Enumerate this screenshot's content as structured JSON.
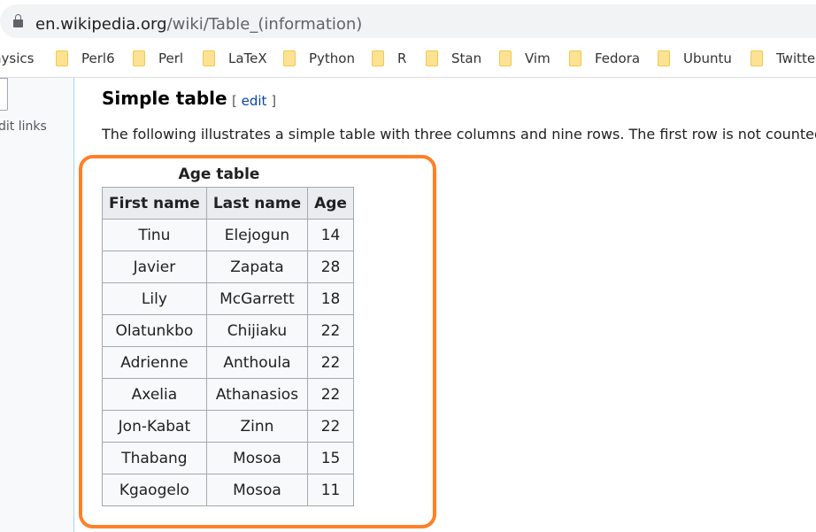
{
  "browser": {
    "url_host": "en.wikipedia.org",
    "url_path": "/wiki/Table_(information)",
    "bookmarks": [
      "hysics",
      "Perl6",
      "Perl",
      "LaTeX",
      "Python",
      "R",
      "Stan",
      "Vim",
      "Fedora",
      "Ubuntu",
      "Twitter"
    ]
  },
  "sidebar": {
    "link": "dit links"
  },
  "section": {
    "title": "Simple table",
    "edit_open": "[ ",
    "edit_label": "edit",
    "edit_close": " ]",
    "paragraph": "The following illustrates a simple table with three columns and nine rows. The first row is not counted"
  },
  "table": {
    "caption": "Age table",
    "headers": [
      "First name",
      "Last name",
      "Age"
    ],
    "rows": [
      [
        "Tinu",
        "Elejogun",
        "14"
      ],
      [
        "Javier",
        "Zapata",
        "28"
      ],
      [
        "Lily",
        "McGarrett",
        "18"
      ],
      [
        "Olatunkbo",
        "Chijiaku",
        "22"
      ],
      [
        "Adrienne",
        "Anthoula",
        "22"
      ],
      [
        "Axelia",
        "Athanasios",
        "22"
      ],
      [
        "Jon-Kabat",
        "Zinn",
        "22"
      ],
      [
        "Thabang",
        "Mosoa",
        "15"
      ],
      [
        "Kgaogelo",
        "Mosoa",
        "11"
      ]
    ]
  },
  "colors": {
    "highlight": "#ff7f27",
    "link": "#0645ad"
  }
}
